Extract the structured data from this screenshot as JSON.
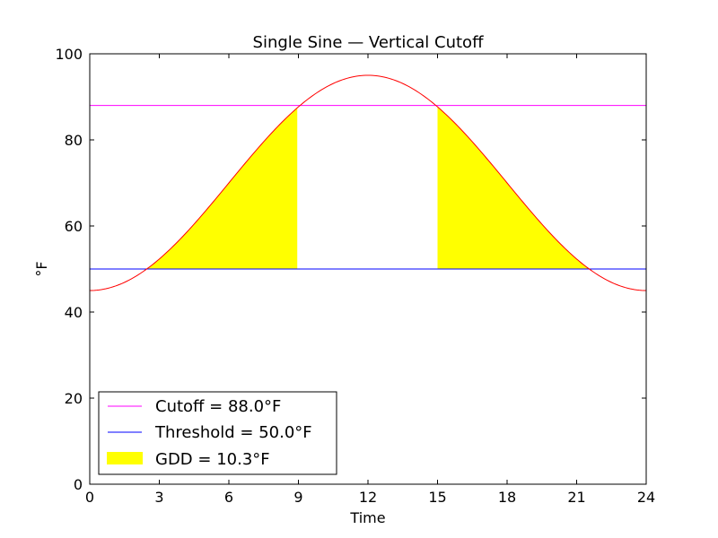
{
  "chart_data": {
    "type": "area",
    "title": "Single Sine — Vertical Cutoff",
    "xlabel": "Time",
    "ylabel": "°F",
    "xlim": [
      0,
      24
    ],
    "ylim": [
      0,
      100
    ],
    "xticks": [
      0,
      3,
      6,
      9,
      12,
      15,
      18,
      21,
      24
    ],
    "yticks": [
      0,
      20,
      40,
      60,
      80,
      100
    ],
    "grid": false,
    "legend_position": "lower-left",
    "curve": {
      "t_min": 0,
      "t_max": 24,
      "min_temp": 45,
      "max_temp": 95,
      "peak_time": 12,
      "color": "#ff0000"
    },
    "cutoff": {
      "label": "Cutoff = 88.0°F",
      "value": 88.0,
      "color": "#ff00ff"
    },
    "threshold": {
      "label": "Threshold = 50.0°F",
      "value": 50.0,
      "color": "#0000ff"
    },
    "gdd": {
      "label": "GDD = 10.3°F",
      "color": "#ffff00",
      "regions": [
        {
          "x_start": 2.37,
          "x_end": 8.95
        },
        {
          "x_start": 15.0,
          "x_end": 21.63
        }
      ]
    }
  }
}
